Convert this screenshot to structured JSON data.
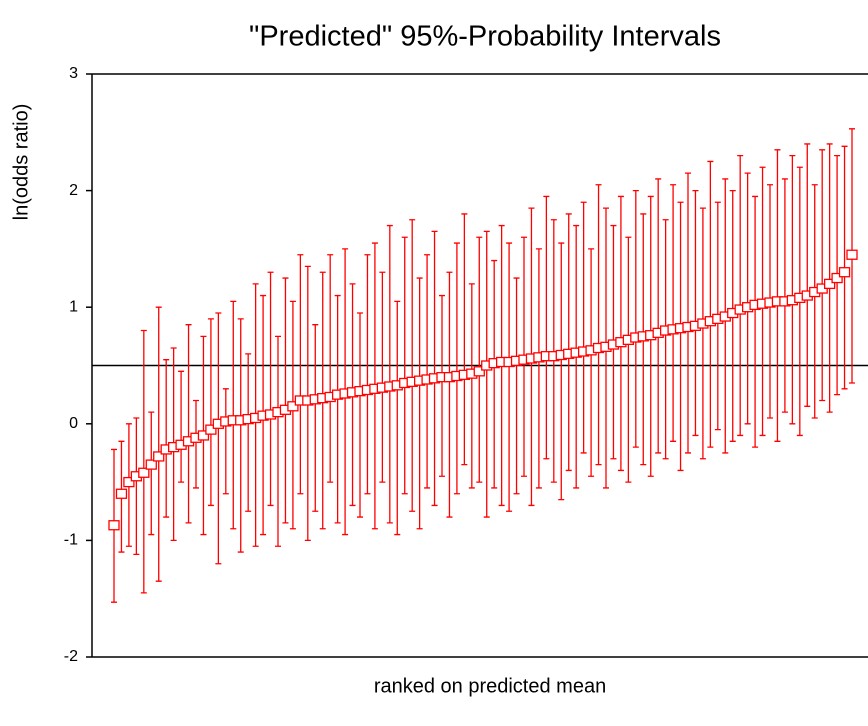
{
  "chart_data": {
    "type": "errorbar",
    "title": "\"Predicted\" 95%-Probability Intervals",
    "xlabel": "ranked on predicted mean",
    "ylabel": "ln(odds ratio)",
    "color": "#ff0000",
    "ylim": [
      -2,
      3
    ],
    "yticks": [
      -2,
      -1,
      0,
      1,
      2,
      3
    ],
    "reference_line": 0.5,
    "values": [
      -0.87,
      -0.6,
      -0.5,
      -0.45,
      -0.42,
      -0.35,
      -0.28,
      -0.22,
      -0.2,
      -0.18,
      -0.15,
      -0.12,
      -0.1,
      -0.05,
      0,
      0.02,
      0.03,
      0.03,
      0.04,
      0.05,
      0.07,
      0.08,
      0.1,
      0.12,
      0.15,
      0.2,
      0.2,
      0.21,
      0.22,
      0.23,
      0.25,
      0.26,
      0.27,
      0.28,
      0.29,
      0.3,
      0.31,
      0.32,
      0.33,
      0.35,
      0.36,
      0.37,
      0.38,
      0.39,
      0.4,
      0.4,
      0.41,
      0.42,
      0.43,
      0.45,
      0.5,
      0.52,
      0.53,
      0.53,
      0.54,
      0.55,
      0.56,
      0.57,
      0.58,
      0.58,
      0.59,
      0.6,
      0.61,
      0.62,
      0.63,
      0.65,
      0.66,
      0.68,
      0.7,
      0.72,
      0.74,
      0.75,
      0.76,
      0.78,
      0.8,
      0.81,
      0.82,
      0.83,
      0.84,
      0.86,
      0.88,
      0.9,
      0.92,
      0.95,
      0.98,
      1.0,
      1.02,
      1.03,
      1.04,
      1.05,
      1.05,
      1.06,
      1.08,
      1.1,
      1.13,
      1.16,
      1.2,
      1.25,
      1.3,
      1.45
    ],
    "lower": [
      -1.53,
      -1.1,
      -1.05,
      -1.12,
      -1.45,
      -0.95,
      -1.35,
      -0.8,
      -1.0,
      -0.5,
      -0.85,
      -0.55,
      -0.95,
      -0.7,
      -1.2,
      -0.6,
      -0.9,
      -1.1,
      -0.75,
      -1.05,
      -0.95,
      -0.7,
      -1.05,
      -0.85,
      -0.9,
      -0.6,
      -1.0,
      -0.75,
      -0.9,
      -0.5,
      -0.85,
      -0.95,
      -0.7,
      -0.8,
      -0.6,
      -0.9,
      -0.5,
      -0.85,
      -0.95,
      -0.6,
      -0.75,
      -0.9,
      -0.55,
      -0.7,
      -0.45,
      -0.8,
      -0.6,
      -0.35,
      -0.55,
      -0.5,
      -0.8,
      -0.55,
      -0.7,
      -0.75,
      -0.6,
      -0.45,
      -0.7,
      -0.55,
      -0.3,
      -0.5,
      -0.65,
      -0.4,
      -0.55,
      -0.25,
      -0.45,
      -0.35,
      -0.55,
      -0.3,
      -0.4,
      -0.5,
      -0.2,
      -0.35,
      -0.45,
      -0.25,
      -0.3,
      -0.15,
      -0.4,
      -0.25,
      -0.1,
      -0.3,
      -0.2,
      -0.05,
      -0.25,
      -0.15,
      -0.1,
      0.0,
      -0.2,
      -0.1,
      0.05,
      -0.15,
      0.1,
      0.0,
      -0.1,
      0.15,
      0.05,
      0.2,
      0.1,
      0.25,
      0.3,
      0.35
    ],
    "upper": [
      -0.22,
      -0.15,
      0.0,
      0.05,
      0.8,
      0.1,
      1.0,
      0.55,
      0.65,
      0.45,
      0.85,
      0.2,
      0.75,
      0.9,
      0.95,
      0.3,
      1.05,
      0.9,
      0.6,
      1.2,
      1.1,
      1.3,
      0.75,
      1.25,
      1.05,
      1.45,
      1.35,
      0.85,
      1.3,
      1.45,
      1.1,
      1.5,
      1.2,
      0.95,
      1.45,
      1.55,
      1.3,
      1.7,
      1.05,
      1.6,
      1.75,
      1.25,
      1.45,
      1.65,
      1.1,
      1.3,
      1.55,
      1.8,
      1.2,
      1.6,
      1.65,
      1.4,
      1.7,
      1.55,
      1.25,
      1.6,
      1.85,
      1.5,
      1.95,
      1.75,
      1.55,
      1.8,
      1.7,
      1.9,
      1.5,
      2.05,
      1.85,
      1.7,
      1.95,
      1.6,
      2.0,
      1.8,
      1.95,
      2.1,
      1.75,
      2.05,
      1.9,
      2.15,
      2.0,
      1.85,
      2.25,
      1.9,
      2.1,
      2.0,
      2.3,
      2.15,
      1.95,
      2.2,
      2.05,
      2.35,
      2.1,
      2.3,
      2.2,
      2.4,
      2.05,
      2.35,
      2.4,
      2.3,
      2.38,
      2.53
    ]
  }
}
